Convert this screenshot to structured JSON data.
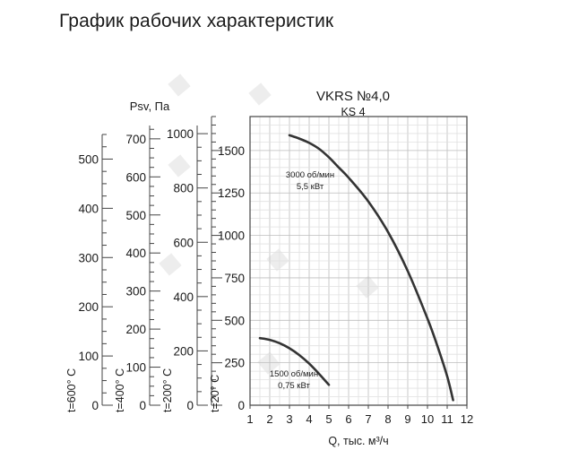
{
  "page": {
    "title": "График рабочих характеристик"
  },
  "chart_data": {
    "type": "line",
    "title": "VKRS №4,0",
    "subtitle": "KS 4",
    "xlabel": "Q, тыс. м³/ч",
    "ylabel": "Psv, Па",
    "xlim": [
      1,
      12
    ],
    "ylim": [
      0,
      1700
    ],
    "x_ticks": [
      "1",
      "2",
      "3",
      "4",
      "5",
      "6",
      "7",
      "8",
      "9",
      "10",
      "11",
      "12"
    ],
    "y_ticks": [
      "0",
      "250",
      "500",
      "750",
      "1000",
      "1250",
      "1500"
    ],
    "grid": true,
    "series": [
      {
        "name": "3000 об/мин",
        "annotation": [
          "3000 об/мин",
          "5,5 кВт"
        ],
        "x": [
          3.0,
          3.5,
          4.0,
          4.5,
          5.0,
          5.5,
          6.0,
          7.0,
          8.0,
          9.0,
          10.0,
          10.5,
          11.0,
          11.3
        ],
        "y": [
          1590,
          1570,
          1545,
          1510,
          1460,
          1400,
          1340,
          1200,
          1020,
          790,
          510,
          350,
          170,
          30
        ]
      },
      {
        "name": "1500 об/мин",
        "annotation": [
          "1500 об/мин",
          "0,75 кВт"
        ],
        "x": [
          1.5,
          2.0,
          2.5,
          3.0,
          3.5,
          4.0,
          4.5,
          5.0
        ],
        "y": [
          395,
          385,
          365,
          335,
          295,
          245,
          185,
          120
        ]
      }
    ],
    "temperature_scales": [
      {
        "label": "t=600° C",
        "ticks": [
          "0",
          "100",
          "200",
          "300",
          "400",
          "500"
        ]
      },
      {
        "label": "t=400° C",
        "ticks": [
          "0",
          "100",
          "200",
          "300",
          "400",
          "500",
          "600",
          "700"
        ]
      },
      {
        "label": "t=200° C",
        "ticks": [
          "0",
          "200",
          "400",
          "600",
          "800",
          "1000"
        ]
      },
      {
        "label": "t=20° C",
        "ticks": [
          "0",
          "250",
          "500",
          "750",
          "1000",
          "1500"
        ]
      }
    ]
  }
}
